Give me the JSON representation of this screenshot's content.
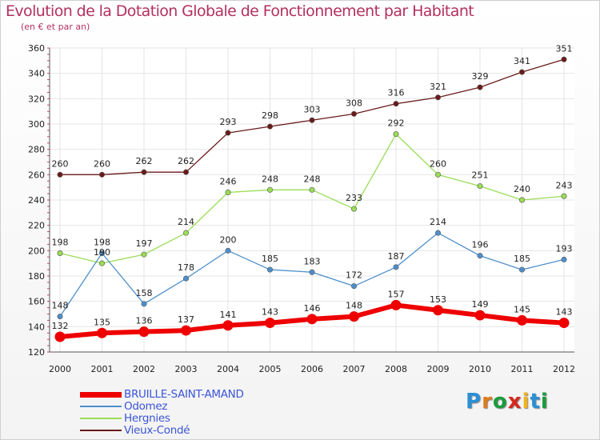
{
  "title": "Evolution de la Dotation Globale de Fonctionnement par Habitant",
  "subtitle": "(en € et par an)",
  "logo": {
    "text": "Proxiti",
    "colors": [
      "#2a8fd6",
      "#e07b1a",
      "#1a9c3e",
      "#d6281e",
      "#f2b21b",
      "#2a8fd6",
      "#1a9c3e"
    ]
  },
  "chart_data": {
    "type": "line",
    "title": "Evolution de la Dotation Globale de Fonctionnement par Habitant",
    "subtitle": "(en € et par an)",
    "x": [
      2000,
      2001,
      2002,
      2003,
      2004,
      2005,
      2006,
      2007,
      2008,
      2009,
      2010,
      2011,
      2012
    ],
    "ylim": [
      120,
      360
    ],
    "yticks": [
      120,
      140,
      160,
      180,
      200,
      220,
      240,
      260,
      280,
      300,
      320,
      340,
      360
    ],
    "grid": true,
    "legend": "bottom-left",
    "series": [
      {
        "name": "BRUILLE-SAINT-AMAND",
        "color": "#ee0000",
        "values": [
          132,
          135,
          136,
          137,
          141,
          143,
          146,
          148,
          157,
          153,
          149,
          145,
          143
        ]
      },
      {
        "name": "Odomez",
        "color": "#4d8fcc",
        "values": [
          148,
          198,
          158,
          178,
          200,
          185,
          183,
          172,
          187,
          214,
          196,
          185,
          193
        ]
      },
      {
        "name": "Hergnies",
        "color": "#99dd55",
        "values": [
          198,
          190,
          197,
          214,
          246,
          248,
          248,
          233,
          292,
          260,
          251,
          240,
          243
        ]
      },
      {
        "name": "Vieux-Condé",
        "color": "#6b1a1a",
        "values": [
          260,
          260,
          262,
          262,
          293,
          298,
          303,
          308,
          316,
          321,
          329,
          341,
          351
        ]
      }
    ]
  }
}
